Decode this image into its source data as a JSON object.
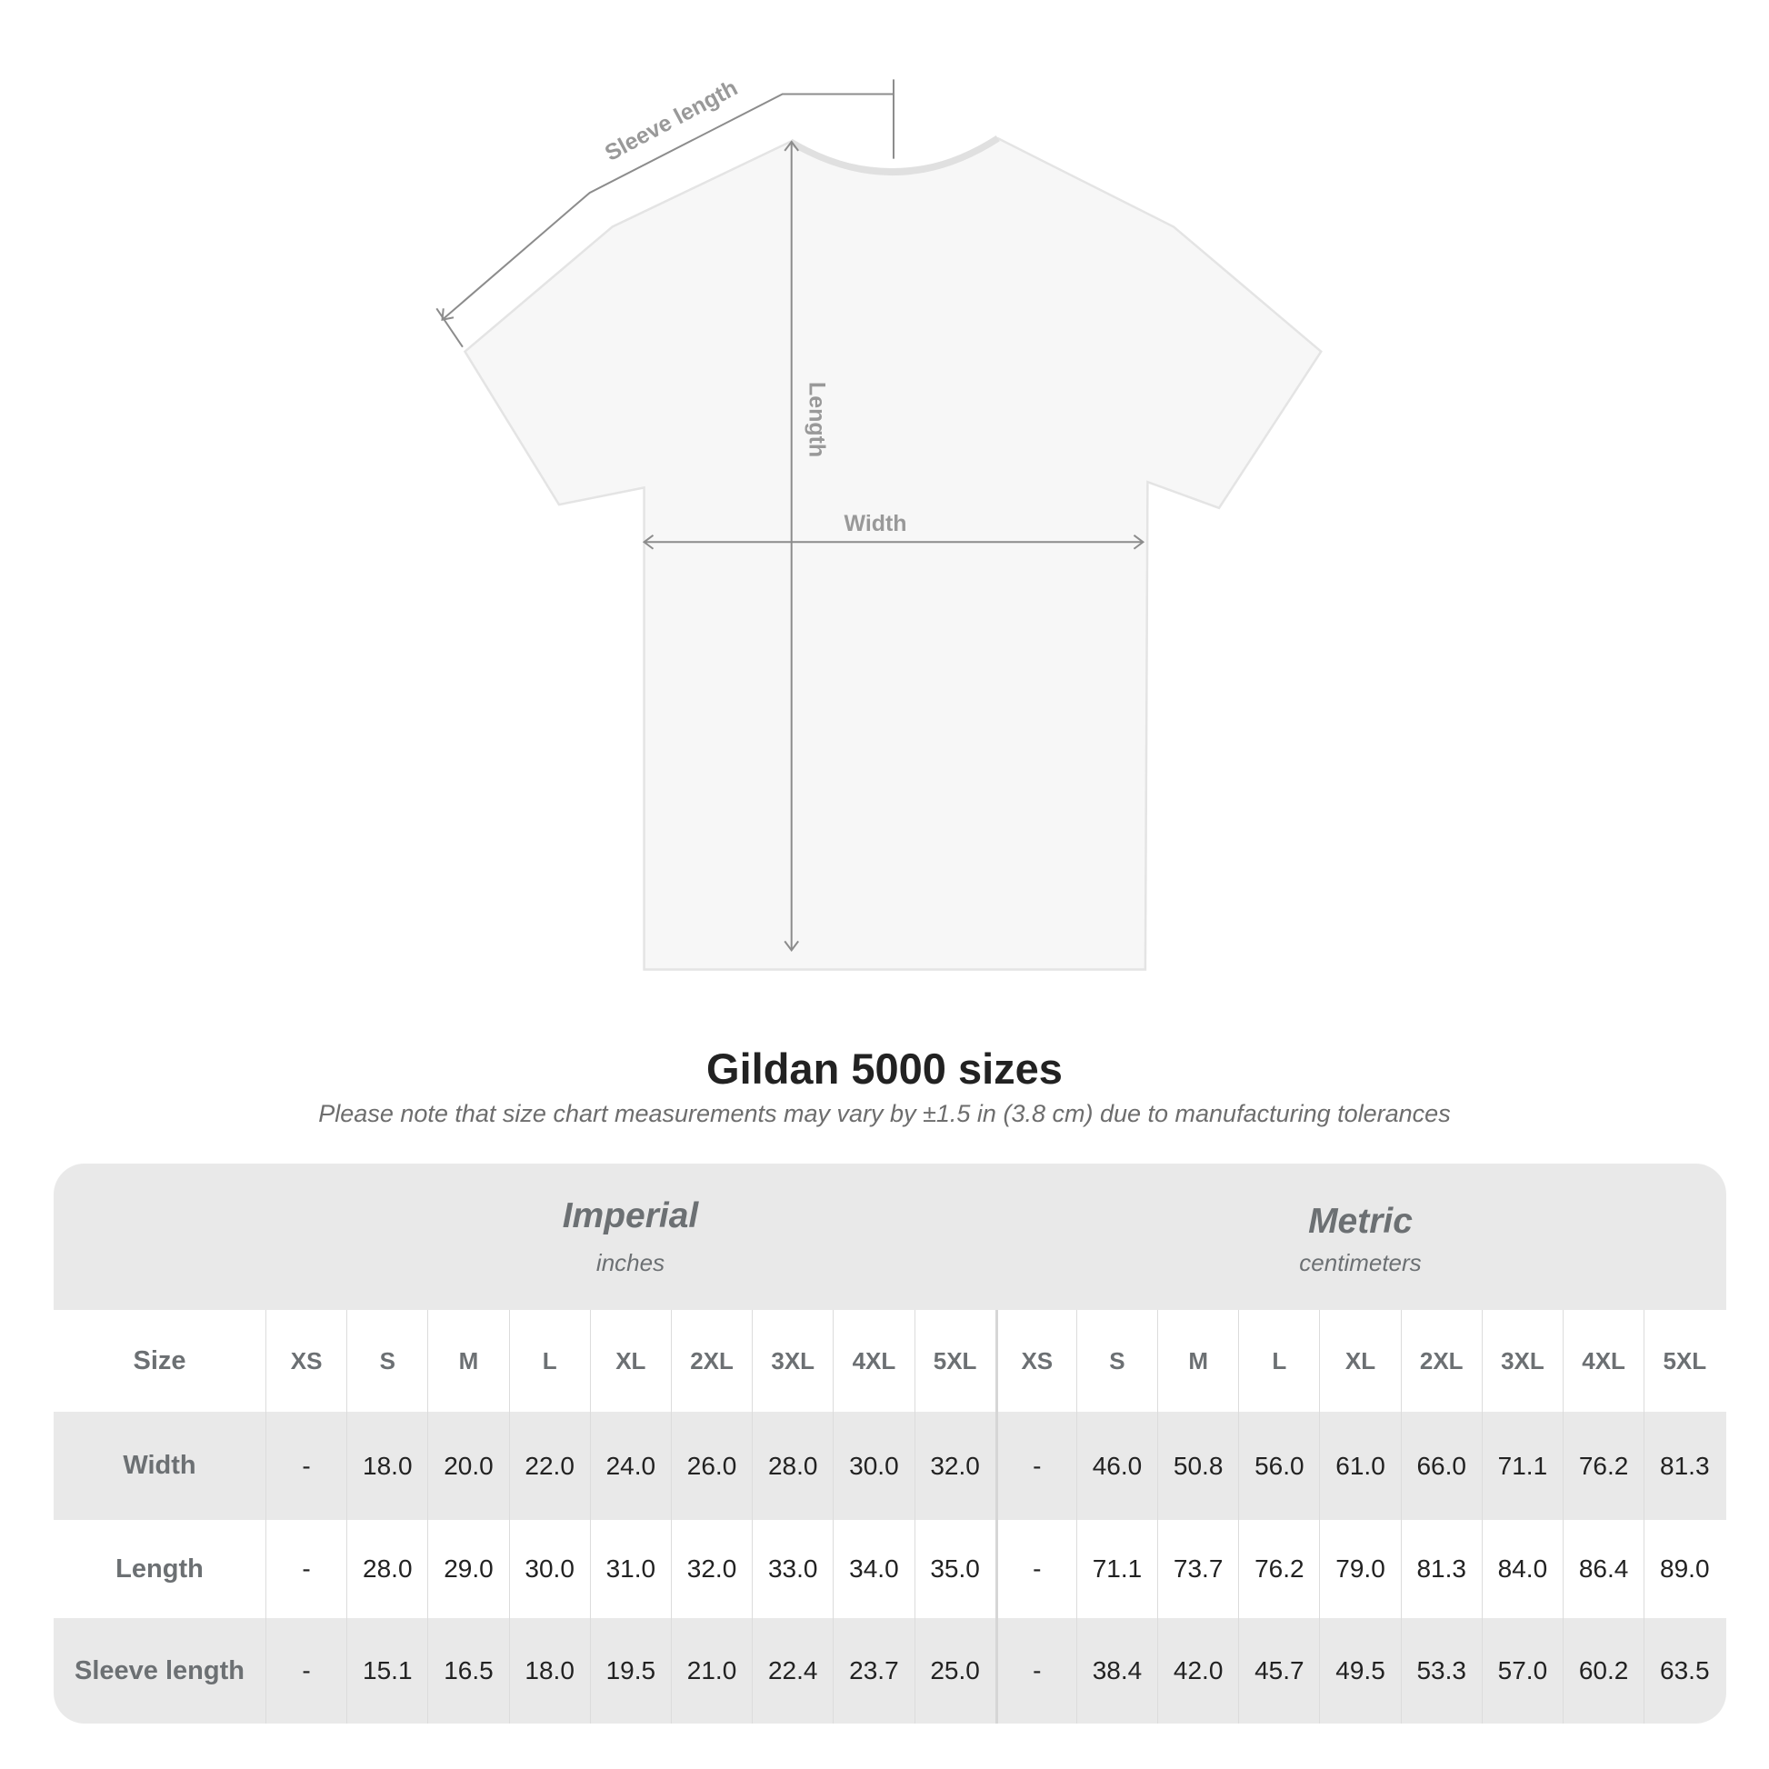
{
  "diagram": {
    "labels": {
      "sleeve": "Sleeve length",
      "length": "Length",
      "width": "Width"
    },
    "colors": {
      "shirt": "#f7f7f7",
      "measure_line": "#8c8c8c",
      "label": "#999999"
    }
  },
  "title": "Gildan 5000 sizes",
  "subtitle": "Please note that size chart measurements may vary by ±1.5 in (3.8 cm) due to manufacturing tolerances",
  "table": {
    "imperial": {
      "label": "Imperial",
      "unit": "inches"
    },
    "metric": {
      "label": "Metric",
      "unit": "centimeters"
    },
    "size_label": "Size",
    "sizes": [
      "XS",
      "S",
      "M",
      "L",
      "XL",
      "2XL",
      "3XL",
      "4XL",
      "5XL"
    ],
    "rows": [
      {
        "label": "Width",
        "imperial": [
          "-",
          "18.0",
          "20.0",
          "22.0",
          "24.0",
          "26.0",
          "28.0",
          "30.0",
          "32.0"
        ],
        "metric": [
          "-",
          "46.0",
          "50.8",
          "56.0",
          "61.0",
          "66.0",
          "71.1",
          "76.2",
          "81.3"
        ]
      },
      {
        "label": "Length",
        "imperial": [
          "-",
          "28.0",
          "29.0",
          "30.0",
          "31.0",
          "32.0",
          "33.0",
          "34.0",
          "35.0"
        ],
        "metric": [
          "-",
          "71.1",
          "73.7",
          "76.2",
          "79.0",
          "81.3",
          "84.0",
          "86.4",
          "89.0"
        ]
      },
      {
        "label": "Sleeve length",
        "imperial": [
          "-",
          "15.1",
          "16.5",
          "18.0",
          "19.5",
          "21.0",
          "22.4",
          "23.7",
          "25.0"
        ],
        "metric": [
          "-",
          "38.4",
          "42.0",
          "45.7",
          "49.5",
          "53.3",
          "57.0",
          "60.2",
          "63.5"
        ]
      }
    ],
    "colors": {
      "band": "#e9e9e9",
      "header_text": "#6c7073",
      "value_text": "#222222"
    }
  }
}
